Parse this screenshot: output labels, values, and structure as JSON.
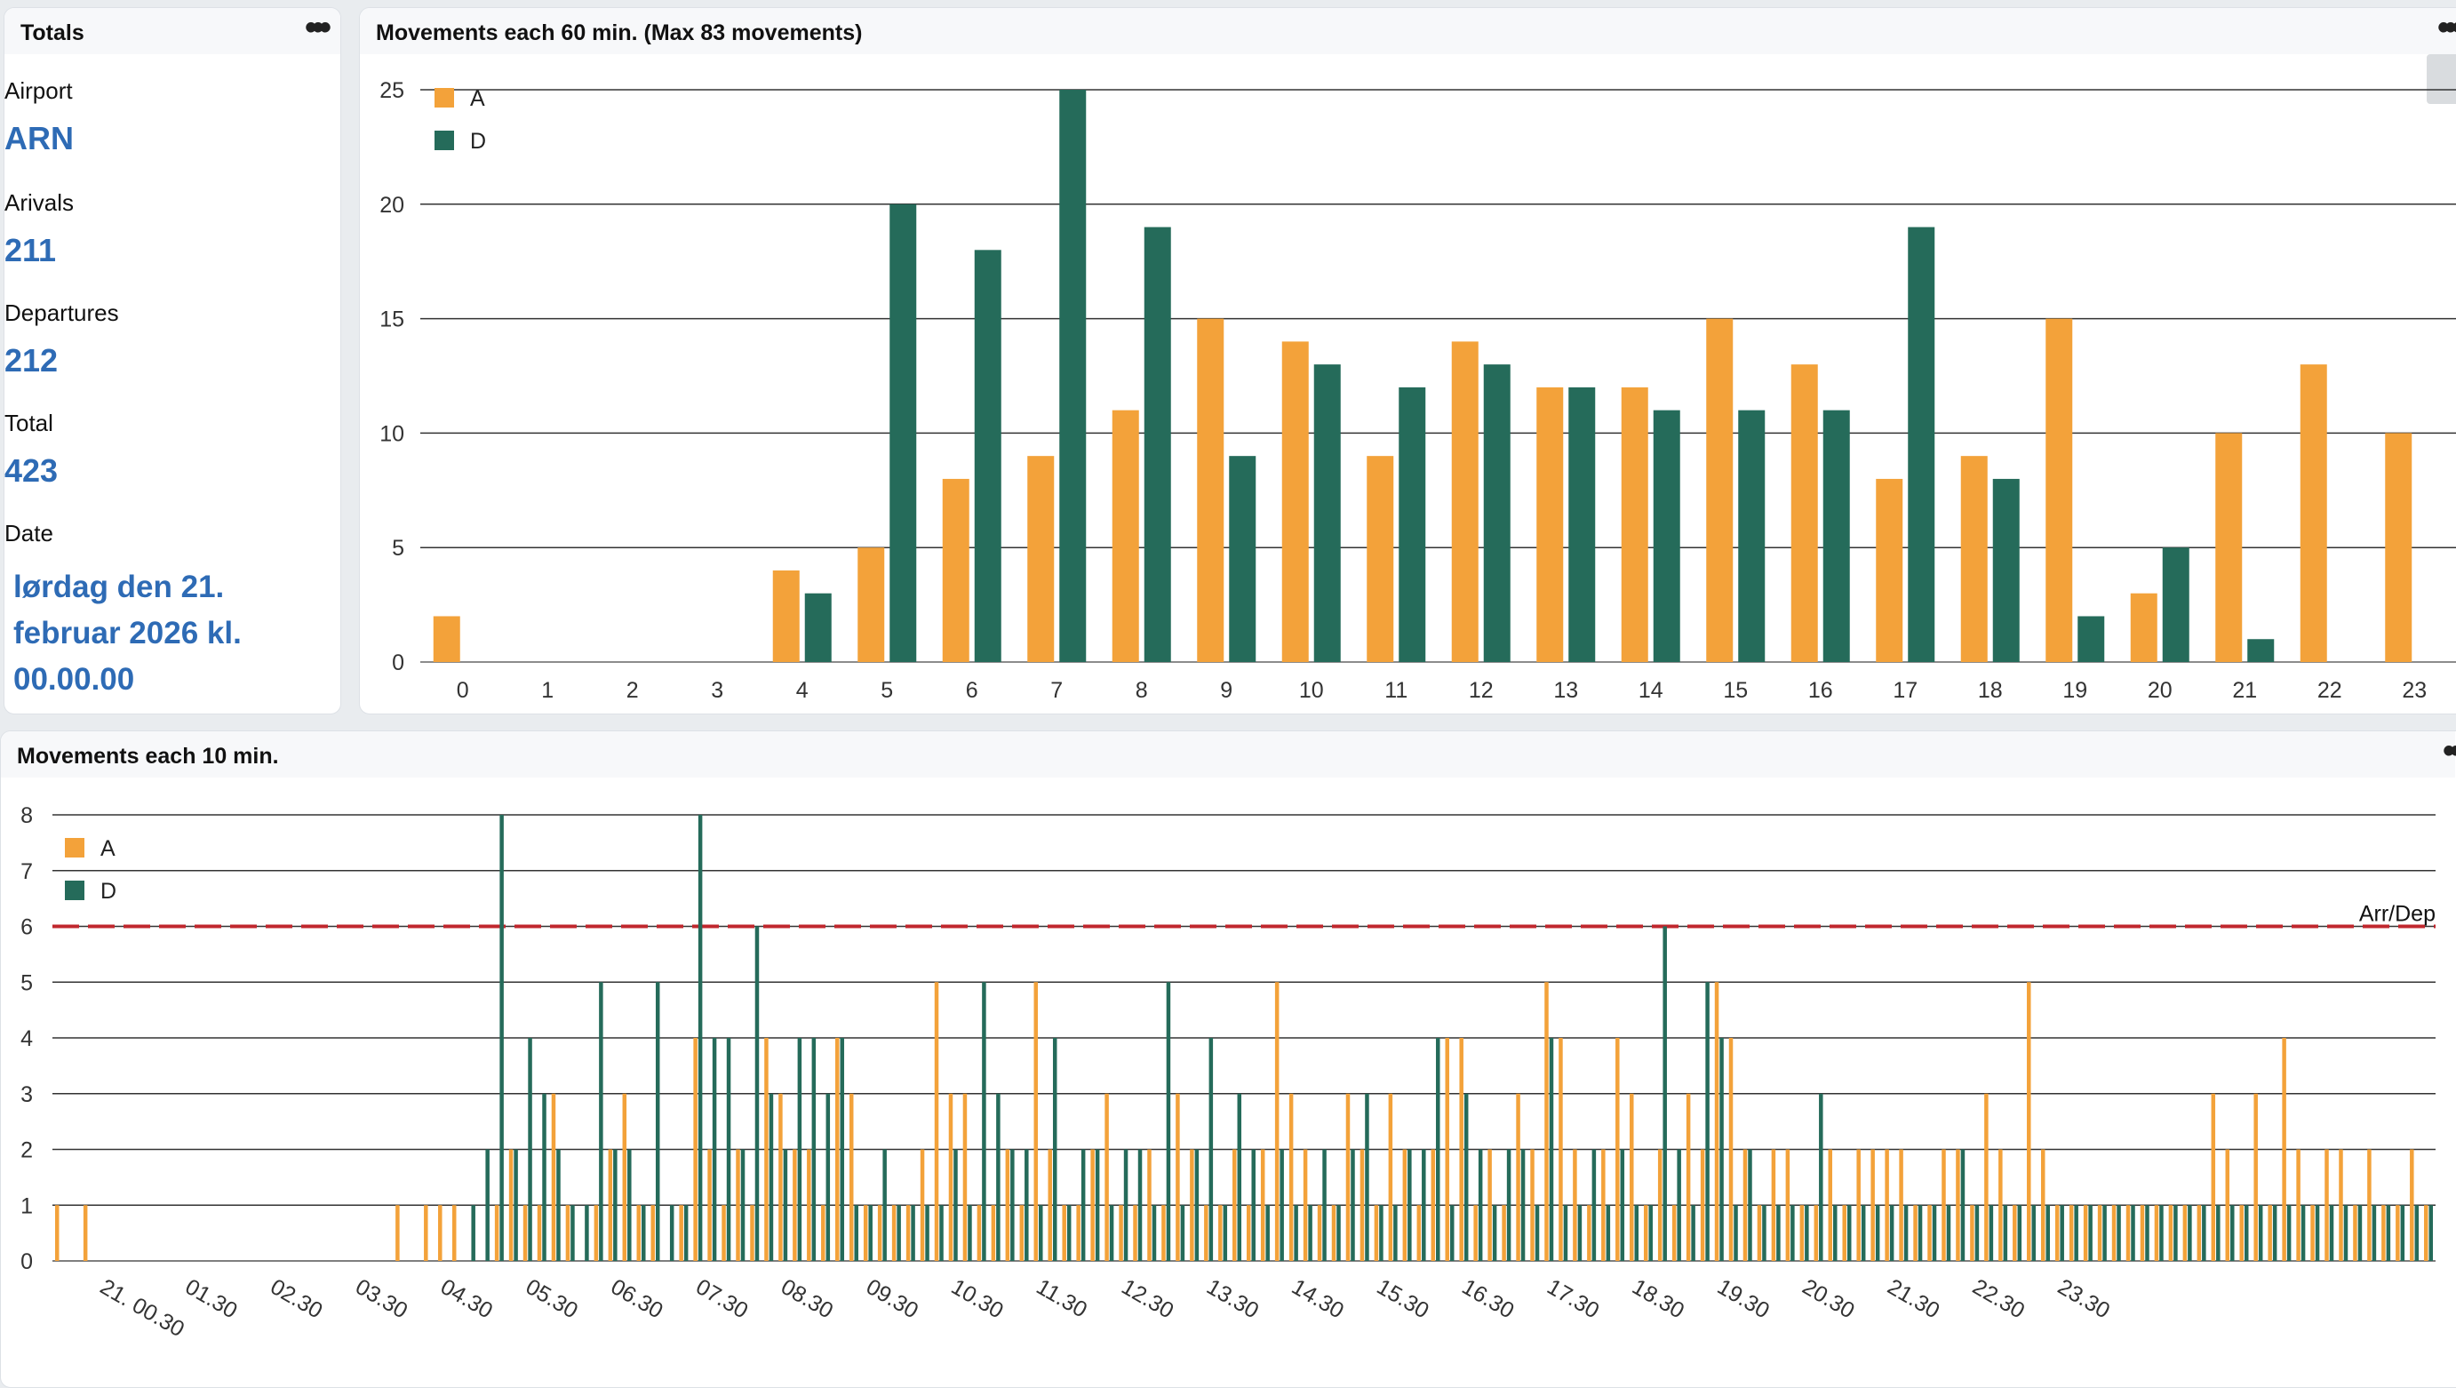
{
  "totals": {
    "title": "Totals",
    "airport_label": "Airport",
    "airport_value": "ARN",
    "arrivals_label": "Arivals",
    "arrivals_value": "211",
    "departures_label": "Departures",
    "departures_value": "212",
    "total_label": "Total",
    "total_value": "423",
    "date_label": "Date",
    "date_value": "lørdag den 21. februar 2026 kl. 00.00.00"
  },
  "hourly": {
    "title": "Movements each 60 min. (Max 83 movements)"
  },
  "ten_min": {
    "title": "Movements each 10 min."
  },
  "colors": {
    "arrivals": "#f3a23a",
    "departures": "#256b5a",
    "threshold": "#c0272d"
  },
  "chart_data": [
    {
      "type": "bar",
      "categories": [
        "0",
        "1",
        "2",
        "3",
        "4",
        "5",
        "6",
        "7",
        "8",
        "9",
        "10",
        "11",
        "12",
        "13",
        "14",
        "15",
        "16",
        "17",
        "18",
        "19",
        "20",
        "21",
        "22",
        "23"
      ],
      "series": [
        {
          "name": "A",
          "values": [
            2,
            0,
            0,
            0,
            4,
            5,
            8,
            9,
            11,
            15,
            14,
            9,
            14,
            12,
            12,
            15,
            13,
            8,
            9,
            15,
            3,
            10,
            13,
            10
          ]
        },
        {
          "name": "D",
          "values": [
            0,
            0,
            0,
            0,
            3,
            20,
            18,
            25,
            19,
            9,
            13,
            12,
            13,
            12,
            11,
            11,
            11,
            19,
            8,
            2,
            5,
            1,
            0,
            0
          ]
        }
      ],
      "ylim": [
        0,
        25
      ],
      "yticks": [
        0,
        5,
        10,
        15,
        20,
        25
      ],
      "legend": "top-left",
      "grid": true
    },
    {
      "type": "bar",
      "x_tick_labels": [
        "21. 00.30",
        "01.30",
        "02.30",
        "03.30",
        "04.30",
        "05.30",
        "06.30",
        "07.30",
        "08.30",
        "09.30",
        "10.30",
        "11.30",
        "12.30",
        "13.30",
        "14.30",
        "15.30",
        "16.30",
        "17.30",
        "18.30",
        "19.30",
        "20.30",
        "21.30",
        "22.30",
        "23.30"
      ],
      "series": [
        {
          "name": "A",
          "values": [
            1,
            0,
            1,
            0,
            0,
            0,
            0,
            0,
            0,
            0,
            0,
            0,
            0,
            0,
            0,
            0,
            0,
            0,
            0,
            0,
            0,
            0,
            0,
            0,
            1,
            0,
            1,
            1,
            1,
            0,
            0,
            1,
            2,
            1,
            1,
            3,
            1,
            0,
            1,
            2,
            3,
            1,
            1,
            0,
            1,
            4,
            2,
            1,
            2,
            1,
            4,
            3,
            2,
            2,
            1,
            4,
            3,
            1,
            1,
            1,
            1,
            2,
            5,
            3,
            3,
            1,
            1,
            2,
            1,
            5,
            2,
            1,
            1,
            2,
            3,
            1,
            1,
            2,
            1,
            3,
            2,
            1,
            1,
            2,
            1,
            2,
            5,
            3,
            2,
            1,
            1,
            3,
            2,
            1,
            3,
            2,
            1,
            2,
            4,
            4,
            1,
            2,
            1,
            3,
            2,
            5,
            4,
            2,
            1,
            2,
            4,
            3,
            1,
            2,
            1,
            3,
            2,
            5,
            4,
            2,
            1,
            2,
            2,
            1,
            1,
            2,
            1,
            2,
            2,
            2,
            2,
            1,
            1,
            2,
            2,
            1,
            3,
            2,
            1,
            5,
            2,
            1,
            1,
            1,
            1,
            1,
            1,
            1,
            1,
            1,
            1,
            1,
            3,
            2,
            1,
            3,
            1,
            4,
            2,
            1,
            2,
            2,
            1,
            2,
            1,
            1,
            2,
            1
          ]
        },
        {
          "name": "D",
          "values": [
            0,
            0,
            0,
            0,
            0,
            0,
            0,
            0,
            0,
            0,
            0,
            0,
            0,
            0,
            0,
            0,
            0,
            0,
            0,
            0,
            0,
            0,
            0,
            0,
            0,
            0,
            0,
            0,
            0,
            1,
            2,
            8,
            2,
            4,
            3,
            2,
            1,
            1,
            5,
            2,
            2,
            1,
            5,
            1,
            1,
            8,
            4,
            4,
            2,
            6,
            3,
            2,
            4,
            4,
            3,
            4,
            1,
            1,
            2,
            1,
            1,
            1,
            1,
            2,
            1,
            5,
            3,
            2,
            2,
            1,
            4,
            1,
            2,
            2,
            1,
            2,
            2,
            1,
            5,
            1,
            2,
            4,
            1,
            3,
            2,
            1,
            2,
            1,
            1,
            2,
            1,
            2,
            3,
            1,
            1,
            2,
            2,
            4,
            1,
            3,
            2,
            1,
            2,
            2,
            1,
            4,
            1,
            1,
            2,
            1,
            2,
            1,
            1,
            6,
            2,
            1,
            5,
            4,
            1,
            2,
            1,
            1,
            1,
            1,
            3,
            1,
            1,
            1,
            1,
            1,
            1,
            1,
            1,
            1,
            2,
            1,
            1,
            1,
            1,
            1,
            1,
            1,
            1,
            1,
            1,
            1,
            1,
            1,
            1,
            1,
            1,
            1,
            1,
            1,
            1,
            1,
            1,
            1,
            1,
            1,
            1,
            1,
            1,
            1,
            1,
            1,
            1,
            1
          ]
        }
      ],
      "ylim": [
        0,
        8
      ],
      "yticks": [
        0,
        1,
        2,
        3,
        4,
        5,
        6,
        7,
        8
      ],
      "threshold": {
        "value": 6,
        "label": "Arr/Dep"
      },
      "legend": "top-left",
      "grid": true
    }
  ]
}
